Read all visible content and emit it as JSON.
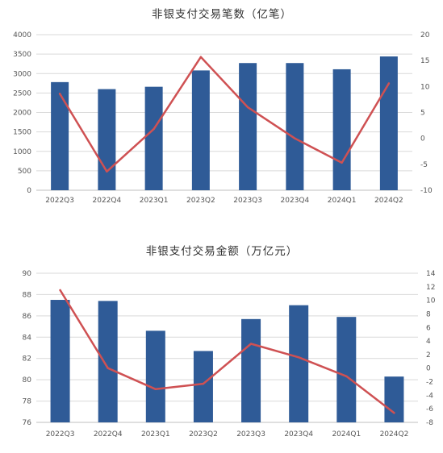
{
  "colors": {
    "bar": "#2f5b97",
    "line": "#cf5153",
    "grid": "#d9d9d9",
    "axis": "#bfbfbf"
  },
  "chart_data": [
    {
      "type": "bar",
      "title": "非银支付交易笔数（亿笔）",
      "categories": [
        "2022Q3",
        "2022Q4",
        "2023Q1",
        "2023Q2",
        "2023Q3",
        "2023Q4",
        "2024Q1",
        "2024Q2"
      ],
      "series": [
        {
          "chart_type": "bar",
          "axis": "left",
          "values": [
            2780,
            2600,
            2660,
            3080,
            3270,
            3270,
            3110,
            3440
          ]
        },
        {
          "chart_type": "line",
          "axis": "right",
          "values": [
            8.6,
            -6.4,
            1.8,
            15.7,
            6.0,
            0.0,
            -4.7,
            10.6
          ]
        }
      ],
      "ylim": [
        0,
        4000
      ],
      "y_ticks": [
        "0",
        "500",
        "1000",
        "1500",
        "2000",
        "2500",
        "3000",
        "3500",
        "4000"
      ],
      "y2lim": [
        -10,
        20
      ],
      "y2_ticks": [
        "-10",
        "-5",
        "0",
        "5",
        "10",
        "15",
        "20"
      ],
      "grid": true,
      "legend": "none"
    },
    {
      "type": "bar",
      "title": "非银支付交易金额（万亿元）",
      "categories": [
        "2022Q3",
        "2022Q4",
        "2023Q1",
        "2023Q2",
        "2023Q3",
        "2023Q4",
        "2024Q1",
        "2024Q2"
      ],
      "series": [
        {
          "chart_type": "bar",
          "axis": "left",
          "values": [
            87.5,
            87.4,
            84.6,
            82.7,
            85.7,
            87.0,
            85.9,
            80.3
          ]
        },
        {
          "chart_type": "line",
          "axis": "right",
          "values": [
            11.5,
            0.0,
            -3.1,
            -2.3,
            3.6,
            1.6,
            -1.2,
            -6.6
          ]
        }
      ],
      "ylim": [
        76,
        90
      ],
      "y_ticks": [
        "76",
        "78",
        "80",
        "82",
        "84",
        "86",
        "88",
        "90"
      ],
      "y2lim": [
        -8,
        14
      ],
      "y2_ticks": [
        "-8",
        "-6",
        "-4",
        "-2",
        "0",
        "2",
        "4",
        "6",
        "8",
        "10",
        "12",
        "14"
      ],
      "grid": true,
      "legend": "none"
    }
  ]
}
